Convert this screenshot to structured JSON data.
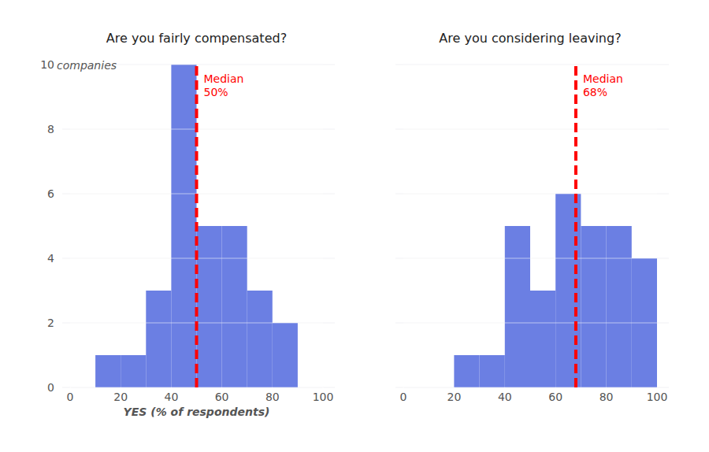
{
  "chart_data": [
    {
      "type": "histogram",
      "title": "Are you fairly compensated?",
      "bins": [
        10,
        20,
        30,
        40,
        50,
        60,
        70,
        80,
        90
      ],
      "counts": [
        1,
        1,
        3,
        10,
        5,
        5,
        3,
        2
      ],
      "color": "#6b7fe3",
      "xlim": [
        0,
        100
      ],
      "xticks": [
        0,
        20,
        40,
        60,
        80,
        100
      ],
      "ylim": [
        0,
        10
      ],
      "yticks": [
        0,
        2,
        4,
        6,
        8,
        10
      ],
      "grid": true,
      "x_label": "YES (% of respondents)",
      "y_label": "companies",
      "median": {
        "text": "Median",
        "value": 50,
        "label": "50%",
        "color": "#ff0000"
      }
    },
    {
      "type": "histogram",
      "title": "Are you considering leaving?",
      "bins": [
        20,
        30,
        40,
        50,
        60,
        70,
        80,
        90,
        100
      ],
      "counts": [
        1,
        1,
        5,
        3,
        6,
        5,
        5,
        4
      ],
      "color": "#6b7fe3",
      "xlim": [
        0,
        100
      ],
      "xticks": [
        0,
        20,
        40,
        60,
        80,
        100
      ],
      "ylim": [
        0,
        10
      ],
      "yticks": [
        0,
        2,
        4,
        6,
        8,
        10
      ],
      "grid": true,
      "tick_labels": "x",
      "median": {
        "text": "Median",
        "value": 68,
        "label": "68%",
        "color": "#ff0000"
      }
    }
  ]
}
